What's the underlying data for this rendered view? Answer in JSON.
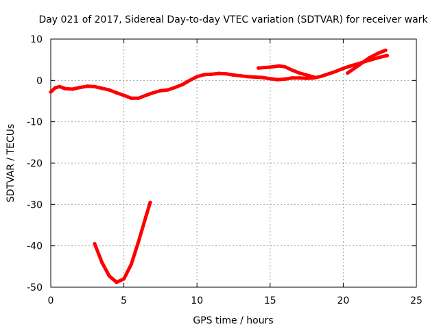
{
  "chart_data": {
    "type": "scatter",
    "title": "Day 021 of 2017, Sidereal Day-to-day VTEC variation (SDTVAR) for receiver wark",
    "xlabel": "GPS time / hours",
    "ylabel": "SDTVAR / TECUs",
    "xlim": [
      0,
      25
    ],
    "ylim": [
      -50,
      10
    ],
    "xticks": [
      0,
      5,
      10,
      15,
      20,
      25
    ],
    "yticks": [
      -50,
      -40,
      -30,
      -20,
      -10,
      0,
      10
    ],
    "grid": true,
    "series": [
      {
        "name": "SDTVAR",
        "color": "#ff0000",
        "segments": [
          [
            [
              0.0,
              -2.8
            ],
            [
              0.3,
              -1.8
            ],
            [
              0.6,
              -1.5
            ],
            [
              1.0,
              -2.0
            ],
            [
              1.5,
              -2.1
            ],
            [
              2.0,
              -1.7
            ],
            [
              2.5,
              -1.4
            ],
            [
              3.0,
              -1.5
            ],
            [
              3.5,
              -1.9
            ],
            [
              4.0,
              -2.3
            ],
            [
              4.5,
              -3.0
            ],
            [
              5.0,
              -3.6
            ],
            [
              5.5,
              -4.3
            ],
            [
              6.0,
              -4.3
            ],
            [
              6.5,
              -3.6
            ],
            [
              7.0,
              -3.0
            ],
            [
              7.5,
              -2.5
            ],
            [
              8.0,
              -2.3
            ],
            [
              8.5,
              -1.7
            ],
            [
              9.0,
              -1.0
            ],
            [
              9.5,
              0.0
            ],
            [
              10.0,
              0.9
            ],
            [
              10.5,
              1.4
            ],
            [
              11.0,
              1.5
            ],
            [
              11.5,
              1.7
            ],
            [
              12.0,
              1.6
            ],
            [
              12.5,
              1.3
            ],
            [
              13.0,
              1.1
            ],
            [
              13.5,
              0.9
            ],
            [
              14.0,
              0.8
            ],
            [
              14.5,
              0.7
            ],
            [
              15.0,
              0.4
            ],
            [
              15.5,
              0.2
            ],
            [
              16.0,
              0.3
            ],
            [
              16.5,
              0.6
            ],
            [
              17.0,
              0.6
            ],
            [
              17.5,
              0.5
            ],
            [
              18.0,
              0.6
            ],
            [
              18.5,
              1.0
            ],
            [
              19.0,
              1.6
            ],
            [
              19.5,
              2.2
            ],
            [
              20.0,
              2.9
            ],
            [
              20.5,
              3.5
            ],
            [
              21.0,
              4.0
            ],
            [
              21.5,
              4.6
            ],
            [
              22.0,
              5.1
            ],
            [
              22.5,
              5.6
            ],
            [
              23.0,
              6.0
            ]
          ],
          [
            [
              14.2,
              3.0
            ],
            [
              15.0,
              3.2
            ],
            [
              15.6,
              3.5
            ],
            [
              16.0,
              3.3
            ],
            [
              16.5,
              2.5
            ],
            [
              17.0,
              1.8
            ],
            [
              17.5,
              1.3
            ],
            [
              18.0,
              0.8
            ]
          ],
          [
            [
              20.3,
              1.8
            ],
            [
              21.0,
              3.5
            ],
            [
              21.8,
              5.5
            ],
            [
              22.4,
              6.6
            ],
            [
              22.9,
              7.3
            ]
          ],
          [
            [
              3.0,
              -39.5
            ],
            [
              3.5,
              -44.0
            ],
            [
              4.0,
              -47.3
            ],
            [
              4.5,
              -48.8
            ],
            [
              5.0,
              -48.0
            ],
            [
              5.5,
              -44.5
            ],
            [
              6.0,
              -39.0
            ],
            [
              6.5,
              -33.0
            ],
            [
              6.8,
              -29.5
            ]
          ]
        ]
      }
    ]
  }
}
